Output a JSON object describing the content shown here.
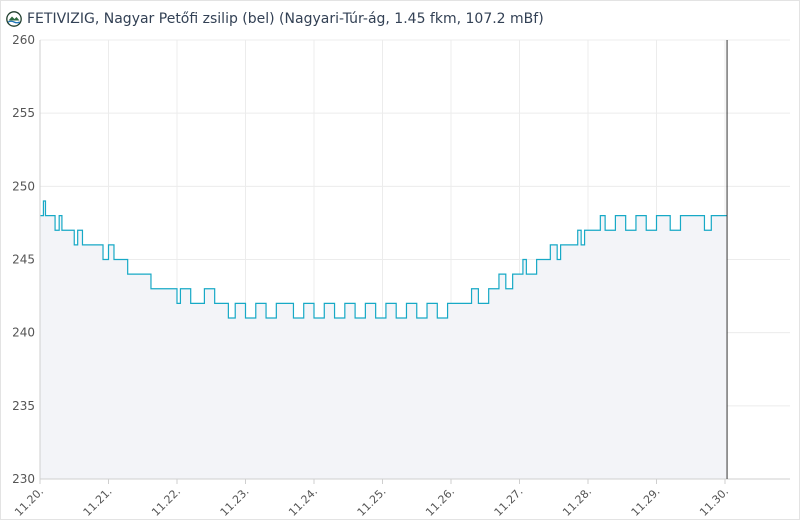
{
  "header": {
    "title": "FETIVIZIG, Nagyar Petőfi zsilip (bel) (Nagyari-Túr-ág, 1.45 fkm, 107.2 mBf)",
    "logo_icon": "fetivizig-logo-icon"
  },
  "colors": {
    "line": "#17a9c6",
    "area": "#f3f4f8",
    "grid": "#ececec",
    "axis": "#cfcfcf",
    "now_marker": "#333333"
  },
  "chart_data": {
    "type": "line",
    "title": "FETIVIZIG, Nagyar Petőfi zsilip (bel) (Nagyari-Túr-ág, 1.45 fkm, 107.2 mBf)",
    "xlabel": "",
    "ylabel": "",
    "ylim": [
      230,
      260
    ],
    "yticks": [
      "230",
      "235",
      "240",
      "245",
      "250",
      "255",
      "260"
    ],
    "xticks": [
      "11.20.",
      "11.21.",
      "11.22.",
      "11.23.",
      "11.24.",
      "11.25.",
      "11.26.",
      "11.27.",
      "11.28.",
      "11.29.",
      "11.30."
    ],
    "grid": true,
    "now_marker_x": 10.03,
    "series": [
      {
        "values": [
          [
            0.0,
            248
          ],
          [
            0.05,
            249
          ],
          [
            0.08,
            248
          ],
          [
            0.22,
            247
          ],
          [
            0.28,
            248
          ],
          [
            0.32,
            247
          ],
          [
            0.38,
            247
          ],
          [
            0.5,
            246
          ],
          [
            0.55,
            247
          ],
          [
            0.62,
            246
          ],
          [
            0.85,
            246
          ],
          [
            0.92,
            245
          ],
          [
            1.0,
            246
          ],
          [
            1.08,
            245
          ],
          [
            1.2,
            245
          ],
          [
            1.28,
            244
          ],
          [
            1.4,
            244
          ],
          [
            1.55,
            244
          ],
          [
            1.62,
            243
          ],
          [
            1.75,
            243
          ],
          [
            1.82,
            243
          ],
          [
            1.95,
            243
          ],
          [
            2.0,
            242
          ],
          [
            2.05,
            243
          ],
          [
            2.15,
            243
          ],
          [
            2.2,
            242
          ],
          [
            2.3,
            242
          ],
          [
            2.4,
            243
          ],
          [
            2.55,
            242
          ],
          [
            2.7,
            242
          ],
          [
            2.75,
            241
          ],
          [
            2.85,
            242
          ],
          [
            3.0,
            241
          ],
          [
            3.15,
            242
          ],
          [
            3.3,
            241
          ],
          [
            3.45,
            242
          ],
          [
            3.6,
            242
          ],
          [
            3.7,
            241
          ],
          [
            3.85,
            242
          ],
          [
            4.0,
            241
          ],
          [
            4.15,
            242
          ],
          [
            4.3,
            241
          ],
          [
            4.45,
            242
          ],
          [
            4.6,
            241
          ],
          [
            4.75,
            242
          ],
          [
            4.9,
            241
          ],
          [
            5.05,
            242
          ],
          [
            5.2,
            241
          ],
          [
            5.35,
            242
          ],
          [
            5.5,
            241
          ],
          [
            5.65,
            242
          ],
          [
            5.8,
            241
          ],
          [
            5.95,
            242
          ],
          [
            6.1,
            242
          ],
          [
            6.25,
            242
          ],
          [
            6.3,
            243
          ],
          [
            6.4,
            242
          ],
          [
            6.55,
            243
          ],
          [
            6.65,
            243
          ],
          [
            6.7,
            244
          ],
          [
            6.8,
            243
          ],
          [
            6.9,
            244
          ],
          [
            7.0,
            244
          ],
          [
            7.05,
            245
          ],
          [
            7.1,
            244
          ],
          [
            7.25,
            245
          ],
          [
            7.4,
            245
          ],
          [
            7.45,
            246
          ],
          [
            7.55,
            245
          ],
          [
            7.6,
            246
          ],
          [
            7.8,
            246
          ],
          [
            7.85,
            247
          ],
          [
            7.9,
            246
          ],
          [
            7.95,
            247
          ],
          [
            8.1,
            247
          ],
          [
            8.18,
            248
          ],
          [
            8.25,
            247
          ],
          [
            8.4,
            248
          ],
          [
            8.55,
            247
          ],
          [
            8.7,
            248
          ],
          [
            8.85,
            247
          ],
          [
            9.0,
            248
          ],
          [
            9.2,
            247
          ],
          [
            9.35,
            248
          ],
          [
            9.55,
            248
          ],
          [
            9.7,
            247
          ],
          [
            9.8,
            248
          ],
          [
            10.03,
            248
          ]
        ]
      }
    ]
  }
}
